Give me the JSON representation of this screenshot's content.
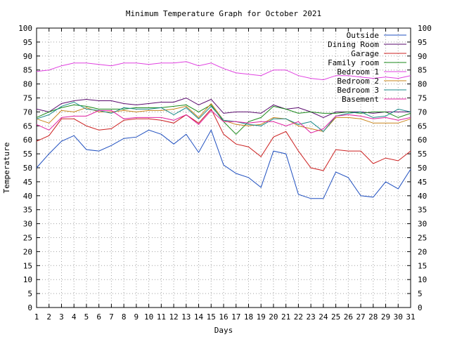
{
  "chart_data": {
    "type": "line",
    "title": "Minimum Temperature Graph for October 2021",
    "xlabel": "Days",
    "ylabel": "Temperature",
    "xlim": [
      1,
      31
    ],
    "ylim": [
      0,
      100
    ],
    "x_ticks": [
      1,
      2,
      3,
      4,
      5,
      6,
      7,
      8,
      9,
      10,
      11,
      12,
      13,
      14,
      15,
      16,
      17,
      18,
      19,
      20,
      21,
      22,
      23,
      24,
      25,
      26,
      27,
      28,
      29,
      30,
      31
    ],
    "y_ticks": [
      0,
      5,
      10,
      15,
      20,
      25,
      30,
      35,
      40,
      45,
      50,
      55,
      60,
      65,
      70,
      75,
      80,
      85,
      90,
      95,
      100
    ],
    "grid": true,
    "legend_position": "top-right",
    "x": [
      1,
      2,
      3,
      4,
      5,
      6,
      7,
      8,
      9,
      10,
      11,
      12,
      13,
      14,
      15,
      16,
      17,
      18,
      19,
      20,
      21,
      22,
      23,
      24,
      25,
      26,
      27,
      28,
      29,
      30,
      31
    ],
    "series": [
      {
        "name": "Outside",
        "color": "#1f4fbf",
        "values": [
          50,
          55,
          59.5,
          61.5,
          56.5,
          56,
          58,
          60.5,
          61,
          63.5,
          62,
          58.5,
          62,
          55.5,
          63.5,
          51,
          48,
          46.5,
          43,
          56,
          55,
          40.5,
          39,
          39,
          48.5,
          46.5,
          40,
          39.5,
          45,
          42.5,
          49.5
        ]
      },
      {
        "name": "Dining Room",
        "color": "#5a0a6e",
        "values": [
          71,
          70,
          73,
          74,
          74.5,
          74,
          74,
          73,
          72.5,
          73,
          73.5,
          73.5,
          75,
          72.5,
          74.5,
          69.5,
          70,
          70,
          69.5,
          72.5,
          71,
          71.5,
          70,
          68,
          70,
          70,
          70,
          69.5,
          70,
          70,
          70
        ]
      },
      {
        "name": "Garage",
        "color": "#cc2020",
        "values": [
          59.5,
          61.5,
          67.5,
          67.5,
          65,
          63.5,
          64,
          67,
          67.5,
          67.5,
          67,
          66,
          69,
          66,
          71,
          62,
          58.5,
          57.5,
          54,
          61,
          63,
          56,
          50,
          49,
          56.5,
          56,
          56,
          51.5,
          53.5,
          52.5,
          56
        ]
      },
      {
        "name": "Family room",
        "color": "#1a8a1a",
        "values": [
          68,
          70,
          71.5,
          72.5,
          72,
          71,
          71,
          71,
          71.5,
          71.5,
          71.5,
          72,
          72.5,
          70,
          72.5,
          66.5,
          62,
          66.5,
          68,
          72,
          71,
          69.5,
          70,
          69.5,
          69.5,
          70,
          69.5,
          70,
          70,
          68,
          69.5
        ]
      },
      {
        "name": "Bedroom 1",
        "color": "#e040e0",
        "values": [
          84.5,
          85,
          86.5,
          87.5,
          87.5,
          87,
          86.5,
          87.5,
          87.5,
          87,
          87.5,
          87.5,
          88,
          86.5,
          87.5,
          85.5,
          84,
          83.5,
          83,
          85,
          85,
          83,
          82,
          81.5,
          83,
          83,
          82.5,
          82,
          82.5,
          82,
          83
        ]
      },
      {
        "name": "Bedroom 2",
        "color": "#c8841a",
        "values": [
          67.5,
          66,
          70.5,
          70,
          71.5,
          70,
          70,
          70.5,
          70,
          70.5,
          70.5,
          71,
          72,
          68,
          73,
          67,
          65.5,
          65,
          65.5,
          68,
          67.5,
          65,
          64,
          63,
          68,
          68,
          67.5,
          66,
          66,
          66,
          67.5
        ]
      },
      {
        "name": "Bedroom 3",
        "color": "#1a8a8a",
        "values": [
          67.5,
          69,
          72,
          73.5,
          71,
          70.5,
          69.5,
          71.5,
          71,
          71,
          71.5,
          69,
          71.5,
          67.5,
          72,
          67,
          66.5,
          65.5,
          65,
          67.5,
          67.5,
          65.5,
          66.5,
          63,
          68.5,
          69.5,
          70,
          68,
          68.5,
          71,
          70
        ]
      },
      {
        "name": "Basement",
        "color": "#e020a0",
        "values": [
          65.5,
          63.5,
          68,
          68.5,
          68.5,
          70.5,
          70.5,
          67.5,
          68,
          68,
          68,
          67,
          69,
          65.5,
          70.5,
          66.5,
          66.5,
          66,
          66.5,
          66.5,
          65,
          66.5,
          62.5,
          64,
          68.5,
          69,
          68.5,
          67.5,
          68,
          67,
          68
        ]
      }
    ]
  }
}
